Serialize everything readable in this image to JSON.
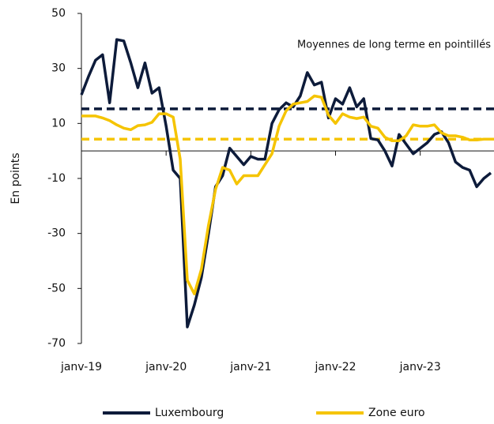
{
  "chart_data": {
    "type": "line",
    "y_axis_label": "En points",
    "annotation": "Moyennes de long terme en pointillés",
    "categories": [
      "janv-19",
      null,
      null,
      null,
      null,
      null,
      null,
      null,
      null,
      null,
      null,
      null,
      "janv-20",
      null,
      null,
      null,
      null,
      null,
      null,
      null,
      null,
      null,
      null,
      null,
      "janv-21",
      null,
      null,
      null,
      null,
      null,
      null,
      null,
      null,
      null,
      null,
      null,
      "janv-22",
      null,
      null,
      null,
      null,
      null,
      null,
      null,
      null,
      null,
      null,
      null,
      "janv-23",
      null,
      null,
      null,
      null,
      null,
      null,
      null,
      null,
      null,
      null
    ],
    "series": [
      {
        "name": "Luxembourg",
        "color": "#0d1b3a",
        "mean": 15.3,
        "values": [
          20.4,
          27,
          33,
          35,
          17.5,
          40.5,
          40,
          32,
          23,
          32,
          21,
          23,
          9,
          -7,
          -10,
          -64,
          -56,
          -46,
          -30,
          -13,
          -9,
          1,
          -2,
          -5,
          -2,
          -3,
          -3,
          10,
          15,
          17.5,
          16,
          20,
          28.5,
          24,
          25,
          12,
          19,
          17,
          23,
          16,
          19,
          4.5,
          4,
          0,
          -5.5,
          6,
          2.5,
          -1,
          1,
          3,
          6,
          7,
          3,
          -4,
          -6,
          -7,
          -13,
          -10,
          -8
        ]
      },
      {
        "name": "Zone euro",
        "color": "#f5c400",
        "mean": 4.3,
        "values": [
          12.7,
          12.7,
          12.7,
          12,
          11,
          9.5,
          8.3,
          7.7,
          9.2,
          9.5,
          10.4,
          13.5,
          13.5,
          12.3,
          -3,
          -47,
          -52,
          -43,
          -27,
          -14,
          -6,
          -7,
          -12,
          -9,
          -9,
          -9,
          -5,
          -1,
          9,
          14.6,
          17,
          17.5,
          18,
          20,
          19.5,
          13,
          10,
          13.5,
          12.3,
          11.8,
          12.3,
          9,
          8.3,
          5,
          3.7,
          3.7,
          5.5,
          9.5,
          9,
          9,
          9.5,
          6.6,
          5.5,
          5.5,
          5,
          4,
          4,
          4.3,
          4.3
        ]
      }
    ],
    "ylim": [
      -70,
      50
    ],
    "yticks": [
      -70,
      -50,
      -30,
      -10,
      10,
      30,
      50
    ],
    "grid": false
  }
}
